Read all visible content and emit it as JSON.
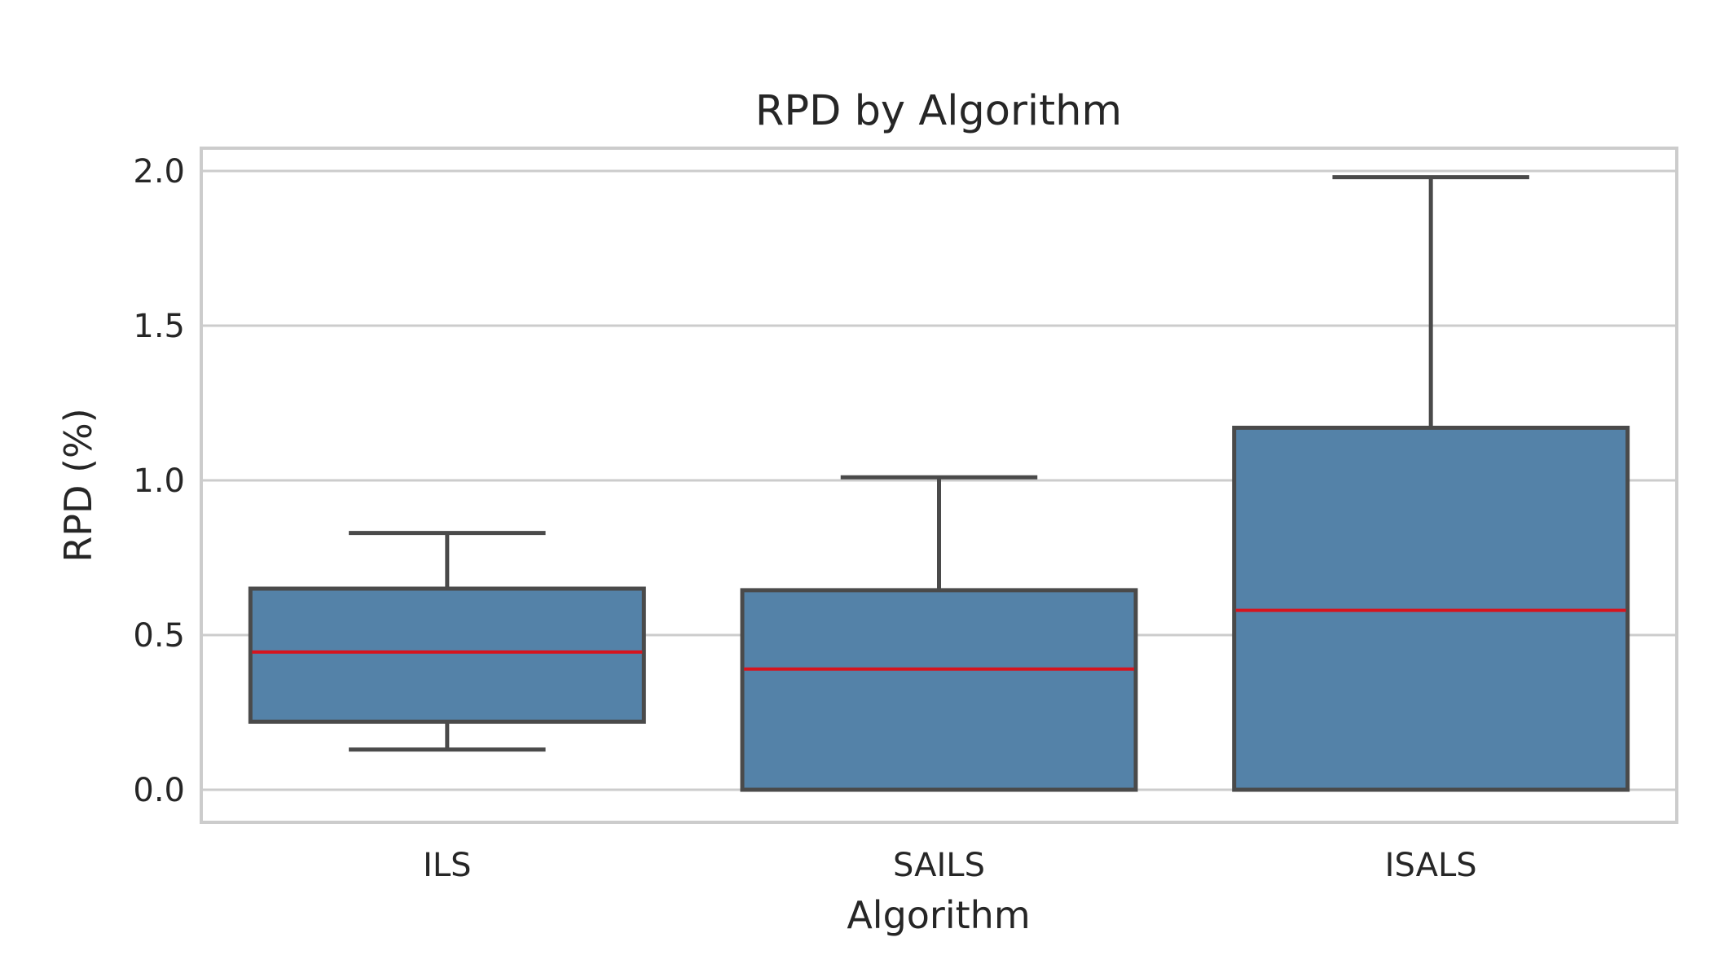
{
  "chart_data": {
    "type": "box",
    "title": "RPD by Algorithm",
    "xlabel": "Algorithm",
    "ylabel": "RPD (%)",
    "categories": [
      "ILS",
      "SAILS",
      "ISALS"
    ],
    "boxes": [
      {
        "category": "ILS",
        "whisker_low": 0.13,
        "q1": 0.22,
        "median": 0.445,
        "q3": 0.65,
        "whisker_high": 0.83
      },
      {
        "category": "SAILS",
        "whisker_low": 0.0,
        "q1": 0.0,
        "median": 0.39,
        "q3": 0.645,
        "whisker_high": 1.01
      },
      {
        "category": "ISALS",
        "whisker_low": 0.0,
        "q1": 0.0,
        "median": 0.58,
        "q3": 1.17,
        "whisker_high": 1.98
      }
    ],
    "ylim": [
      -0.1,
      2.08
    ],
    "yticks": [
      0.0,
      0.5,
      1.0,
      1.5,
      2.0
    ],
    "ytick_labels": [
      "0.0",
      "0.5",
      "1.0",
      "1.5",
      "2.0"
    ],
    "grid": true,
    "colors": {
      "box_fill": "#5482a8",
      "box_edge": "#4a4a4a",
      "median": "#d6141e",
      "grid": "#cccccc"
    }
  }
}
